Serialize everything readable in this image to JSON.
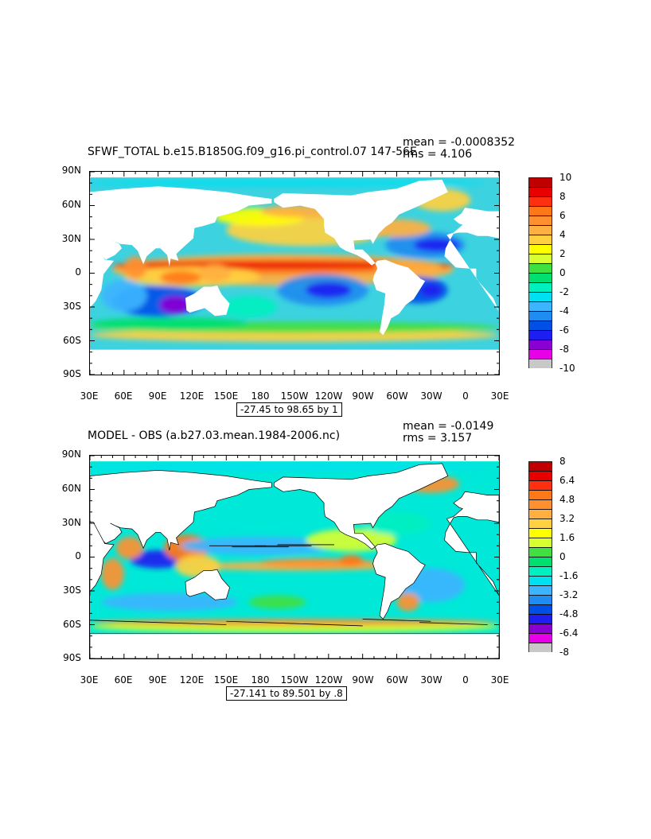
{
  "palette": [
    "#6e6e6e",
    "#c8c8c8",
    "#e800e8",
    "#8a00d4",
    "#1e1ef0",
    "#0050e8",
    "#1e8cf0",
    "#3cb4ff",
    "#00e0f0",
    "#00f0c0",
    "#00e070",
    "#40e040",
    "#d8ff30",
    "#ffff00",
    "#ffd040",
    "#ffb040",
    "#ff9030",
    "#ff7818",
    "#ff3010",
    "#e80000",
    "#c00000"
  ],
  "panels": [
    {
      "id": "top",
      "title": "SFWF_TOTAL b.e15.B1850G.f09_g16.pi_control.07 147-56E",
      "mean_text": "mean = -0.0008352",
      "rms_text": "rms = 4.106",
      "range_text": "-27.45 to 98.65 by 1",
      "y_labels": [
        "90N",
        "60N",
        "30N",
        "0",
        "30S",
        "60S",
        "90S"
      ],
      "x_labels": [
        "30E",
        "60E",
        "90E",
        "120E",
        "150E",
        "180",
        "150W",
        "120W",
        "90W",
        "60W",
        "30W",
        "0",
        "30E"
      ],
      "colorbar_labels": [
        "10",
        "8",
        "6",
        "4",
        "2",
        "0",
        "-2",
        "-4",
        "-6",
        "-8",
        "-10"
      ],
      "colorbar_min": -10,
      "colorbar_max": 10,
      "contours": false
    },
    {
      "id": "bottom",
      "title": "MODEL - OBS (a.b27.03.mean.1984-2006.nc)",
      "mean_text": "mean = -0.0149",
      "rms_text": "rms = 3.157",
      "range_text": "-27.141 to 89.501 by .8",
      "y_labels": [
        "90N",
        "60N",
        "30N",
        "0",
        "30S",
        "60S",
        "90S"
      ],
      "x_labels": [
        "30E",
        "60E",
        "90E",
        "120E",
        "150E",
        "180",
        "150W",
        "120W",
        "90W",
        "60W",
        "30W",
        "0",
        "30E"
      ],
      "colorbar_labels": [
        "8",
        "6.4",
        "4.8",
        "3.2",
        "1.6",
        "0",
        "-1.6",
        "-3.2",
        "-4.8",
        "-6.4",
        "-8"
      ],
      "colorbar_min": -8,
      "colorbar_max": 8,
      "contours": true
    }
  ]
}
